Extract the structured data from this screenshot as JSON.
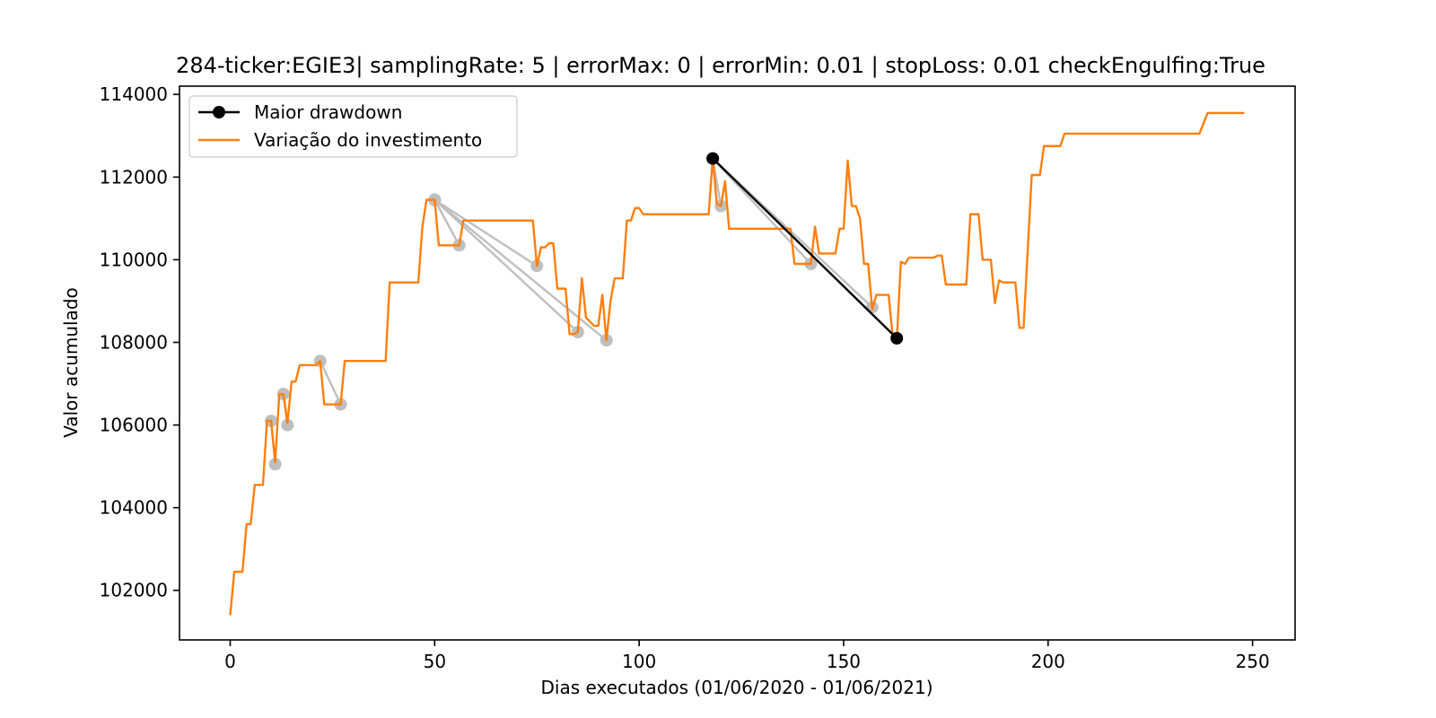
{
  "chart_data": {
    "type": "line",
    "title": "284-ticker:EGIE3| samplingRate: 5 | errorMax: 0 | errorMin: 0.01 | stopLoss: 0.01 checkEngulfing:True",
    "xlabel": "Dias executados (01/06/2020 - 01/06/2021)",
    "ylabel": "Valor acumulado",
    "xlim": [
      -12.4,
      260.4
    ],
    "ylim": [
      100800,
      114200
    ],
    "xticks": [
      0,
      50,
      100,
      150,
      200,
      250
    ],
    "yticks": [
      102000,
      104000,
      106000,
      108000,
      110000,
      112000,
      114000
    ],
    "legend_position": "upper-left",
    "colors": {
      "investment": "#ff7f0e",
      "max_drawdown": "#000000",
      "drawdowns": "#bfbfbf"
    },
    "series": [
      {
        "name": "Variação do investimento",
        "points": [
          [
            0,
            101400
          ],
          [
            1,
            102450
          ],
          [
            3,
            102450
          ],
          [
            4,
            103600
          ],
          [
            5,
            103600
          ],
          [
            6,
            104550
          ],
          [
            8,
            104550
          ],
          [
            9,
            106100
          ],
          [
            10,
            106100
          ],
          [
            11,
            105100
          ],
          [
            12,
            106750
          ],
          [
            13,
            106750
          ],
          [
            14,
            106050
          ],
          [
            15,
            107050
          ],
          [
            16,
            107050
          ],
          [
            17,
            107450
          ],
          [
            21,
            107450
          ],
          [
            22,
            107550
          ],
          [
            23,
            106500
          ],
          [
            26,
            106500
          ],
          [
            27,
            106500
          ],
          [
            28,
            107550
          ],
          [
            38,
            107550
          ],
          [
            39,
            109450
          ],
          [
            46,
            109450
          ],
          [
            47,
            110800
          ],
          [
            48,
            111450
          ],
          [
            50,
            111450
          ],
          [
            51,
            110350
          ],
          [
            56,
            110350
          ],
          [
            57,
            110950
          ],
          [
            74,
            110950
          ],
          [
            75,
            109850
          ],
          [
            76,
            110300
          ],
          [
            77,
            110300
          ],
          [
            78,
            110400
          ],
          [
            79,
            110400
          ],
          [
            80,
            109300
          ],
          [
            82,
            109300
          ],
          [
            83,
            108200
          ],
          [
            84,
            108200
          ],
          [
            85,
            108250
          ],
          [
            86,
            109550
          ],
          [
            87,
            108600
          ],
          [
            89,
            108400
          ],
          [
            90,
            108400
          ],
          [
            91,
            109150
          ],
          [
            92,
            108050
          ],
          [
            93,
            109000
          ],
          [
            94,
            109550
          ],
          [
            96,
            109550
          ],
          [
            97,
            110950
          ],
          [
            98,
            110950
          ],
          [
            99,
            111250
          ],
          [
            100,
            111250
          ],
          [
            101,
            111100
          ],
          [
            117,
            111100
          ],
          [
            118,
            112450
          ],
          [
            119,
            111350
          ],
          [
            120,
            111300
          ],
          [
            121,
            111900
          ],
          [
            122,
            110750
          ],
          [
            137,
            110750
          ],
          [
            138,
            109900
          ],
          [
            142,
            109900
          ],
          [
            143,
            110800
          ],
          [
            144,
            110150
          ],
          [
            148,
            110150
          ],
          [
            149,
            110750
          ],
          [
            150,
            110750
          ],
          [
            151,
            112400
          ],
          [
            152,
            111300
          ],
          [
            153,
            111300
          ],
          [
            154,
            111000
          ],
          [
            155,
            109900
          ],
          [
            156,
            109900
          ],
          [
            157,
            108800
          ],
          [
            158,
            109150
          ],
          [
            161,
            109150
          ],
          [
            162,
            108150
          ],
          [
            163,
            108050
          ],
          [
            164,
            109950
          ],
          [
            165,
            109900
          ],
          [
            166,
            110050
          ],
          [
            172,
            110050
          ],
          [
            173,
            110100
          ],
          [
            174,
            110100
          ],
          [
            175,
            109400
          ],
          [
            180,
            109400
          ],
          [
            181,
            111100
          ],
          [
            183,
            111100
          ],
          [
            184,
            110000
          ],
          [
            186,
            110000
          ],
          [
            187,
            108950
          ],
          [
            188,
            109500
          ],
          [
            189,
            109450
          ],
          [
            192,
            109450
          ],
          [
            193,
            108350
          ],
          [
            194,
            108350
          ],
          [
            196,
            112050
          ],
          [
            198,
            112050
          ],
          [
            199,
            112750
          ],
          [
            203,
            112750
          ],
          [
            204,
            113050
          ],
          [
            237,
            113050
          ],
          [
            239,
            113550
          ],
          [
            248,
            113550
          ]
        ]
      }
    ],
    "drawdown_segments": [
      [
        [
          10,
          106100
        ],
        [
          11,
          105050
        ]
      ],
      [
        [
          13,
          106750
        ],
        [
          14,
          106000
        ]
      ],
      [
        [
          22,
          107550
        ],
        [
          27,
          106500
        ]
      ],
      [
        [
          50,
          111450
        ],
        [
          56,
          110350
        ]
      ],
      [
        [
          50,
          111450
        ],
        [
          75,
          109850
        ]
      ],
      [
        [
          50,
          111450
        ],
        [
          85,
          108250
        ]
      ],
      [
        [
          50,
          111450
        ],
        [
          92,
          108050
        ]
      ],
      [
        [
          118,
          112450
        ],
        [
          120,
          111300
        ]
      ],
      [
        [
          118,
          112450
        ],
        [
          142,
          109900
        ]
      ],
      [
        [
          118,
          112450
        ],
        [
          157,
          108850
        ]
      ]
    ],
    "max_drawdown": {
      "name": "Maior drawdown",
      "points": [
        [
          118,
          112450
        ],
        [
          163,
          108100
        ]
      ]
    }
  }
}
